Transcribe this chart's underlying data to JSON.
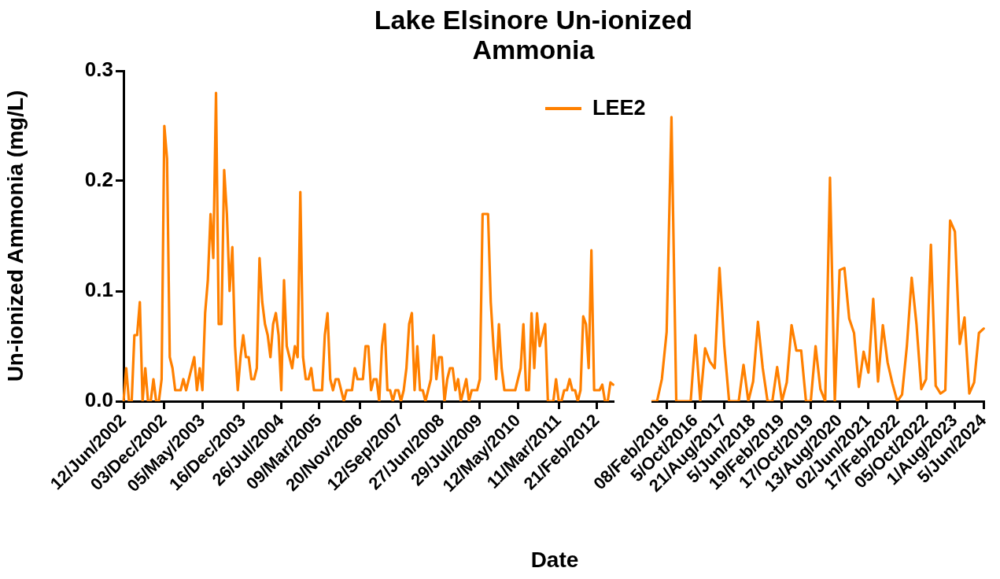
{
  "chart_data": [
    {
      "type": "line",
      "title": "Lake Elsinore Un-ionized Ammonia",
      "xlabel": "Date",
      "ylabel": "Un-ionized Ammonia (mg/L)",
      "legend": "top right",
      "categories": [
        "12/Jun/2002",
        null,
        null,
        null,
        null,
        null,
        null,
        null,
        null,
        null,
        null,
        null,
        null,
        null,
        null,
        "03/Dec/2002",
        null,
        null,
        null,
        null,
        null,
        null,
        null,
        null,
        null,
        null,
        null,
        null,
        null,
        "05/May/2003",
        null,
        null,
        null,
        null,
        null,
        null,
        null,
        null,
        null,
        null,
        null,
        null,
        null,
        null,
        "16/Dec/2003",
        null,
        null,
        null,
        null,
        null,
        null,
        null,
        null,
        null,
        null,
        null,
        null,
        null,
        "26/Jul/2004",
        null,
        null,
        null,
        null,
        null,
        null,
        null,
        null,
        null,
        null,
        null,
        null,
        null,
        "09/Mar/2005",
        null,
        null,
        null,
        null,
        null,
        null,
        null,
        null,
        null,
        null,
        null,
        null,
        null,
        null,
        "20/Nov/2006",
        null,
        null,
        null,
        null,
        null,
        null,
        null,
        null,
        null,
        null,
        null,
        null,
        null,
        null,
        "12/Sep/2007",
        null,
        null,
        null,
        null,
        null,
        null,
        null,
        null,
        null,
        null,
        null,
        null,
        null,
        null,
        "27/Jun/2008",
        null,
        null,
        null,
        null,
        null,
        null,
        null,
        null,
        null,
        null,
        null,
        null,
        null,
        "29/Jul/2009",
        null,
        null,
        null,
        null,
        null,
        null,
        null,
        null,
        null,
        null,
        null,
        null,
        null,
        "12/May/2010",
        null,
        null,
        null,
        null,
        null,
        null,
        null,
        null,
        null,
        null,
        null,
        null,
        null,
        null,
        "11/Mar/2011",
        null,
        null,
        null,
        null,
        null,
        null,
        null,
        null,
        null,
        null,
        null,
        null,
        null,
        "21/Feb/2012",
        null,
        null,
        null,
        null,
        null,
        null
      ],
      "series": [
        {
          "name": "LEE2",
          "color": "#ff8000",
          "values": [
            0,
            0.03,
            0,
            0,
            0.06,
            0.06,
            0.09,
            0,
            0.03,
            0,
            0,
            0.02,
            0,
            0,
            0.02,
            0.25,
            0.22,
            0.04,
            0.03,
            0.01,
            0.01,
            0.01,
            0.02,
            0.01,
            0.02,
            0.03,
            0.04,
            0.01,
            0.03,
            0.01,
            0.08,
            0.11,
            0.17,
            0.13,
            0.28,
            0.07,
            0.07,
            0.21,
            0.17,
            0.1,
            0.14,
            0.05,
            0.01,
            0.04,
            0.06,
            0.04,
            0.04,
            0.02,
            0.02,
            0.03,
            0.13,
            0.09,
            0.07,
            0.06,
            0.04,
            0.07,
            0.08,
            0.06,
            0.01,
            0.11,
            0.05,
            0.04,
            0.03,
            0.05,
            0.04,
            0.19,
            0.04,
            0.02,
            0.02,
            0.03,
            0.01,
            0.01,
            0.01,
            0.01,
            0.06,
            0.08,
            0.02,
            0.01,
            0.02,
            0.02,
            0.01,
            0,
            0.01,
            0.01,
            0.01,
            0.03,
            0.02,
            0.02,
            0.02,
            0.05,
            0.05,
            0.01,
            0.02,
            0.02,
            0,
            0.05,
            0.07,
            0.01,
            0.01,
            0,
            0.01,
            0.01,
            0,
            0.01,
            0.03,
            0.07,
            0.08,
            0.01,
            0.05,
            0.01,
            0.01,
            0,
            0.01,
            0.02,
            0.06,
            0.02,
            0.04,
            0.04,
            0,
            0.02,
            0.03,
            0.03,
            0.01,
            0.02,
            0,
            0.01,
            0.02,
            0,
            0.01,
            0.01,
            0.01,
            0.02,
            0.17,
            0.17,
            0.17,
            0.09,
            0.05,
            0.02,
            0.07,
            0.03,
            0.01,
            0.01,
            0.01,
            0.01,
            0.01,
            0.02,
            0.03,
            0.07,
            0.01,
            0.01,
            0.08,
            0.03,
            0.08,
            0.05,
            0.06,
            0.07,
            0,
            0,
            0,
            0.02,
            0,
            0,
            0.01,
            0.01,
            0.02,
            0.01,
            0.01,
            0,
            0.01,
            0.077,
            0.07,
            0.03,
            0.137,
            0.01,
            0.01,
            0.01,
            0.015,
            0,
            0,
            0.017,
            0.015
          ]
        }
      ],
      "ylim": [
        0,
        0.3
      ],
      "yticks": [
        {
          "value": 0,
          "label": "0.0"
        },
        {
          "value": 0.1,
          "label": "0.1"
        },
        {
          "value": 0.2,
          "label": "0.2"
        },
        {
          "value": 0.3,
          "label": "0.3"
        }
      ]
    },
    {
      "type": "line",
      "tick_labels": "x",
      "categories": [
        null,
        null,
        null,
        "08/Feb/2016",
        null,
        null,
        null,
        null,
        null,
        "5/Oct/2016",
        null,
        null,
        null,
        null,
        null,
        "21/Aug/2017",
        null,
        null,
        null,
        null,
        null,
        "5/Jun/2018",
        null,
        null,
        null,
        null,
        null,
        "19/Feb/2019",
        null,
        null,
        null,
        null,
        null,
        "17/Oct/2019",
        null,
        null,
        null,
        null,
        null,
        "13/Aug/2020",
        null,
        null,
        null,
        null,
        null,
        "02/Jun/2021",
        null,
        null,
        null,
        null,
        null,
        "17/Feb/2022",
        null,
        null,
        null,
        null,
        null,
        "05/Oct/2022",
        null,
        null,
        null,
        null,
        null,
        "1/Aug/2023",
        null,
        null,
        null,
        null,
        null,
        "5/Jun/2024"
      ],
      "series": [
        {
          "color": "#ff8000",
          "values": [
            0,
            0,
            0.02,
            0.063,
            0.258,
            0,
            0,
            0,
            0,
            0.06,
            0,
            0.048,
            0.036,
            0.03,
            0.121,
            0.05,
            0,
            0,
            0,
            0.033,
            0,
            0.018,
            0.072,
            0.03,
            0,
            0,
            0.031,
            0,
            0.017,
            0.069,
            0.046,
            0.046,
            0,
            0,
            0.05,
            0.011,
            0,
            0.203,
            0,
            0.119,
            0.121,
            0.075,
            0.062,
            0.013,
            0.045,
            0.026,
            0.093,
            0.018,
            0.069,
            0.035,
            0.016,
            0,
            0.006,
            0.05,
            0.112,
            0.07,
            0.011,
            0.02,
            0.142,
            0.014,
            0.007,
            0.01,
            0.164,
            0.154,
            0.052,
            0.076,
            0.007,
            0.017,
            0.062,
            0.066
          ]
        }
      ],
      "ylim": [
        0,
        0.3
      ]
    }
  ]
}
